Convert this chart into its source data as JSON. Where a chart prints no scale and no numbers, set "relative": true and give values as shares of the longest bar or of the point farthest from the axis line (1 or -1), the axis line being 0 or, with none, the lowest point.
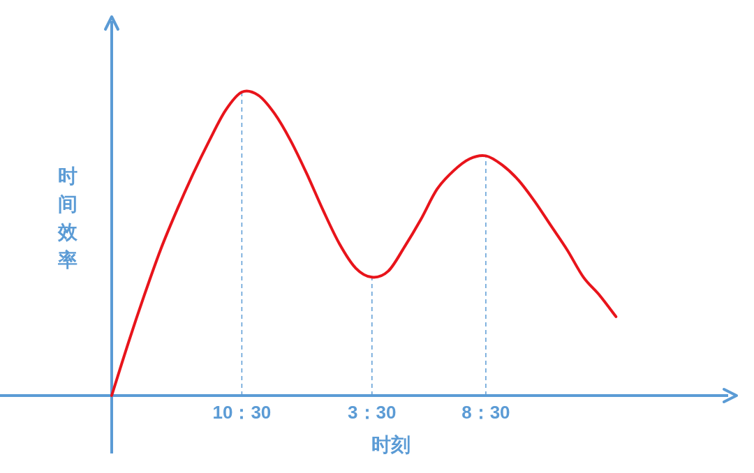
{
  "chart_data": {
    "type": "line",
    "relative": true,
    "xlabel": "时刻",
    "ylabel": "时间效率",
    "tick_labels": "x",
    "categories": [
      null,
      null,
      null,
      null,
      null,
      null,
      null,
      null,
      "10：30",
      null,
      null,
      null,
      null,
      null,
      null,
      null,
      "3：30",
      null,
      null,
      null,
      null,
      null,
      null,
      "8：30",
      null,
      null,
      null,
      null,
      null,
      null,
      null,
      null
    ],
    "series": [
      {
        "color": "#e8141b",
        "values": [
          0,
          0.17,
          0.33,
          0.48,
          0.61,
          0.73,
          0.84,
          0.94,
          1.0,
          0.99,
          0.93,
          0.84,
          0.73,
          0.61,
          0.5,
          0.42,
          0.39,
          0.41,
          0.49,
          0.58,
          0.68,
          0.74,
          0.78,
          0.79,
          0.76,
          0.71,
          0.64,
          0.56,
          0.48,
          0.39,
          0.33,
          0.26
        ]
      }
    ],
    "ref_lines": [
      {
        "axis": "x",
        "value": "10：30",
        "color": "#5b9bd5",
        "line_style": "dashed"
      },
      {
        "axis": "x",
        "value": "3：30",
        "color": "#5b9bd5",
        "line_style": "dashed"
      },
      {
        "axis": "x",
        "value": "8：30",
        "color": "#5b9bd5",
        "line_style": "dashed"
      }
    ]
  }
}
